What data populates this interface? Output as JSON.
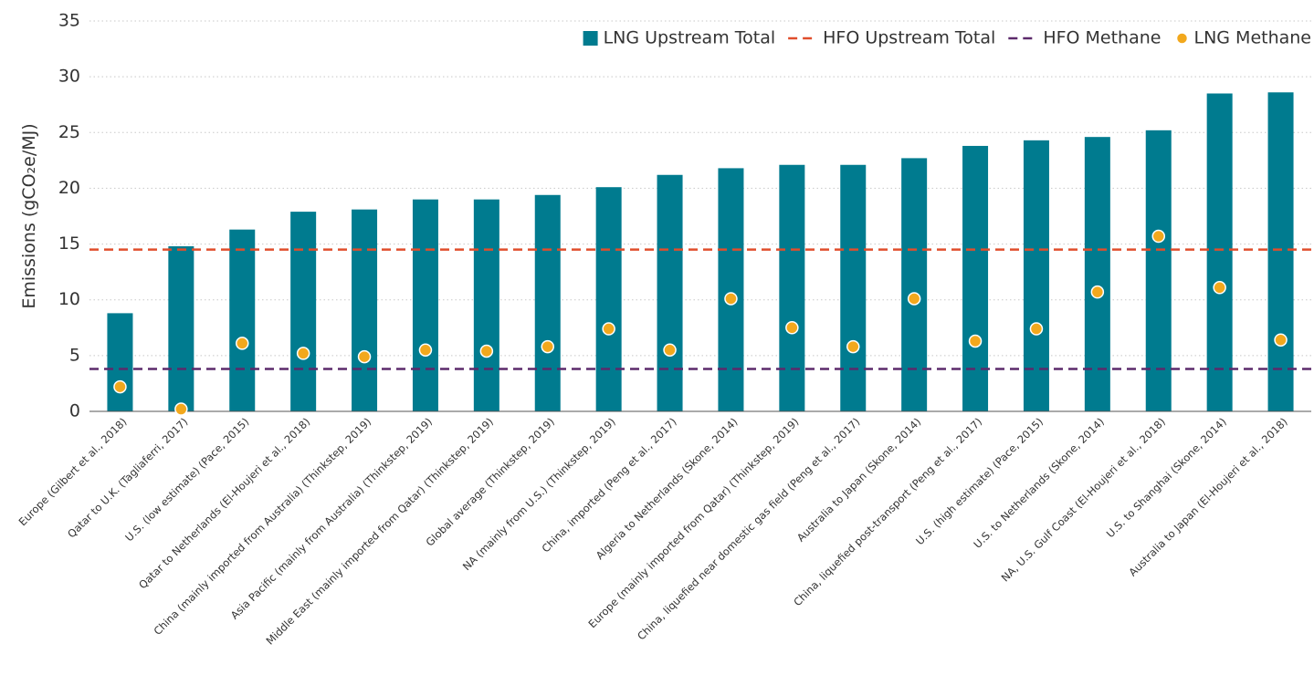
{
  "chart_data": {
    "type": "bar",
    "ylabel": "Emissions (gCO₂e/MJ)",
    "categories": [
      "Europe (Gilbert et al., 2018)",
      "Qatar to U.K. (Tagliaferri, 2017)",
      "U.S. (low estimate) (Pace, 2015)",
      "Qatar to Netherlands (El-Houjeri et al., 2018)",
      "China (mainly imported from Australia) (Thinkstep, 2019)",
      "Asia Pacific (mainly from Australia) (Thinkstep, 2019)",
      "Middle East (mainly imported from Qatar) (Thinkstep, 2019)",
      "Global average (Thinkstep, 2019)",
      "NA (mainly from U.S.) (Thinkstep, 2019)",
      "China, imported (Peng et al., 2017)",
      "Algeria to Netherlands (Skone, 2014)",
      "Europe (mainly imported from Qatar) (Thinkstep, 2019)",
      "China, liquefied near domestic gas field (Peng et al., 2017)",
      "Australia to Japan (Skone, 2014)",
      "China, liquefied post-transport (Peng et al., 2017)",
      "U.S. (high estimate) (Pace, 2015)",
      "U.S. to Netherlands (Skone, 2014)",
      "NA, U.S. Gulf Coast (El-Houjeri et al., 2018)",
      "U.S. to Shanghai (Skone, 2014)",
      "Australia to Japan (El-Houjeri et al., 2018)"
    ],
    "series": [
      {
        "name": "LNG Upstream Total",
        "kind": "bar",
        "color": "#007b8f",
        "values": [
          8.8,
          14.8,
          16.3,
          17.9,
          18.1,
          19.0,
          19.0,
          19.4,
          20.1,
          21.2,
          21.8,
          22.1,
          22.1,
          22.7,
          23.8,
          24.3,
          24.6,
          25.2,
          28.5,
          28.6
        ]
      },
      {
        "name": "HFO Upstream Total",
        "kind": "hline",
        "color": "#e04e2c",
        "value": 14.5
      },
      {
        "name": "HFO Methane",
        "kind": "hline",
        "color": "#5c2a6b",
        "value": 3.8
      },
      {
        "name": "LNG Methane",
        "kind": "dot",
        "color": "#f2a81d",
        "values": [
          2.2,
          0.2,
          6.1,
          5.2,
          4.9,
          5.5,
          5.4,
          5.8,
          7.4,
          5.5,
          10.1,
          7.5,
          5.8,
          10.1,
          6.3,
          7.4,
          10.7,
          15.7,
          11.1,
          6.4
        ]
      }
    ],
    "ylim": [
      0,
      35
    ],
    "yticks": [
      0,
      5,
      10,
      15,
      20,
      25,
      30,
      35
    ],
    "grid": true,
    "legend": "top-right"
  }
}
